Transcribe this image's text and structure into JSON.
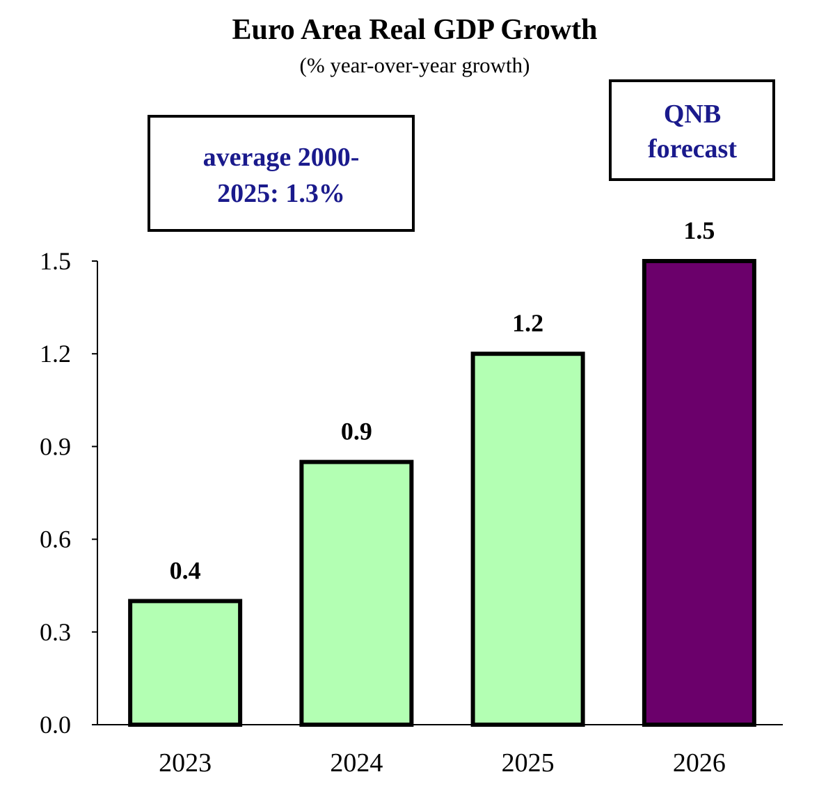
{
  "chart_data": {
    "type": "bar",
    "title": "Euro Area Real GDP Growth",
    "subtitle": "(% year-over-year growth)",
    "categories": [
      "2023",
      "2024",
      "2025",
      "2026"
    ],
    "values": [
      0.4,
      0.85,
      1.2,
      1.5
    ],
    "data_labels": [
      "0.4",
      "0.9",
      "1.2",
      "1.5"
    ],
    "bar_colors": [
      "#b3ffb3",
      "#b3ffb3",
      "#b3ffb3",
      "#6b006b"
    ],
    "ylim": [
      0,
      1.5
    ],
    "yticks": [
      "0.0",
      "0.3",
      "0.6",
      "0.9",
      "1.2",
      "1.5"
    ],
    "xlabel": "",
    "ylabel": "",
    "grid": false,
    "annotations": [
      {
        "lines": [
          "average 2000-",
          "2025: 1.3%"
        ],
        "color": "#1a1a8c"
      },
      {
        "lines": [
          "QNB",
          "forecast"
        ],
        "color": "#1a1a8c"
      }
    ]
  }
}
